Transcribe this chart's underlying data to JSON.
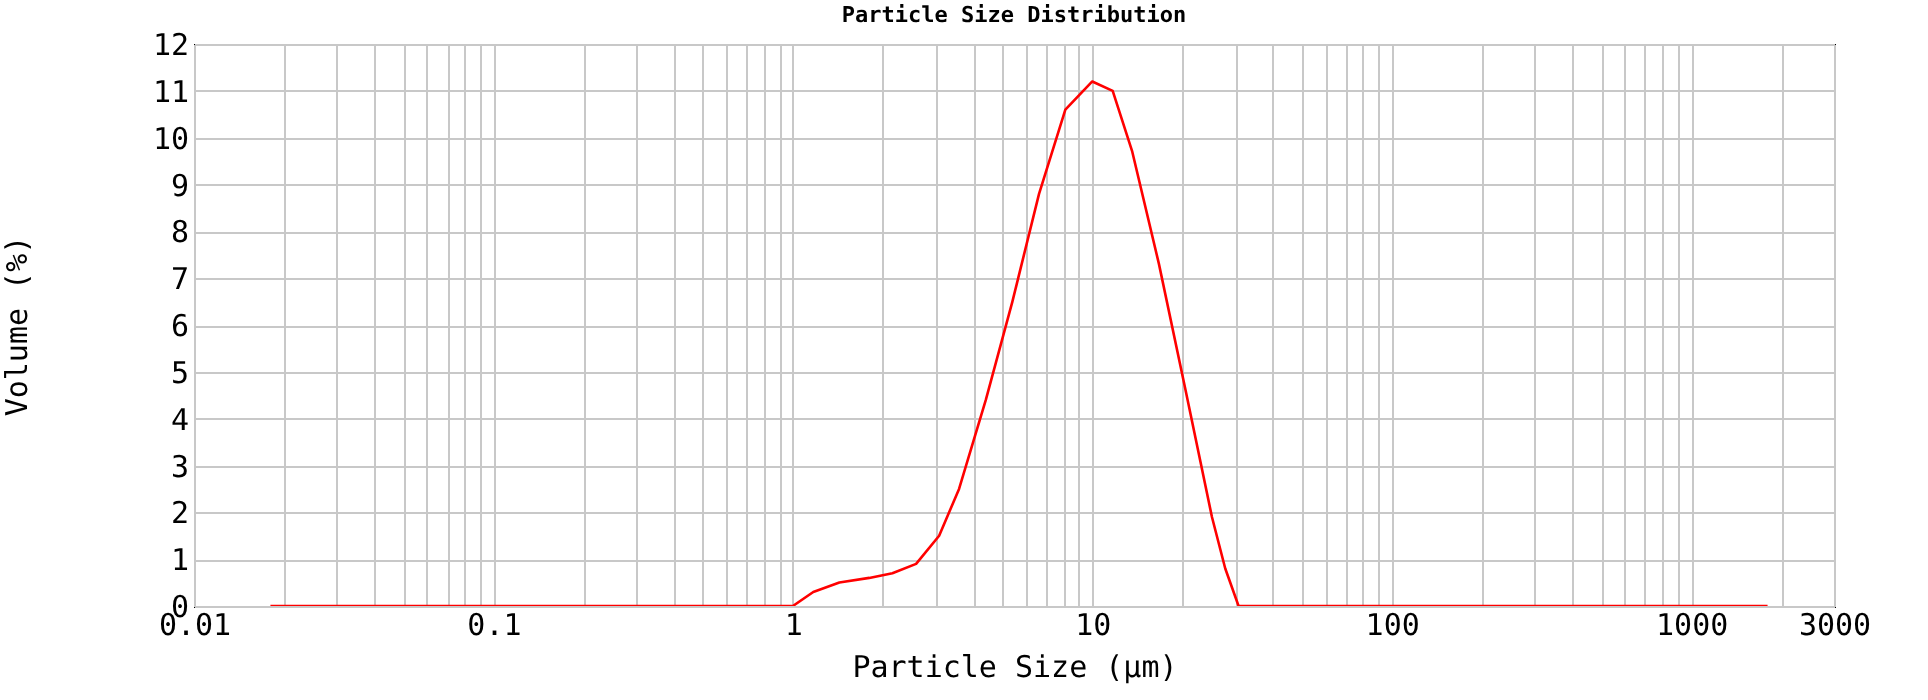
{
  "chart_data": {
    "type": "line",
    "title": "Particle Size Distribution",
    "xlabel": "Particle Size (µm)",
    "ylabel": "Volume (%)",
    "log": "x",
    "grid": true,
    "marker": "none",
    "line_style": "solid",
    "xlim": [
      0.01,
      3000
    ],
    "ylim": [
      0,
      12
    ],
    "xticks": [
      0.01,
      {
        "value": 0.02,
        "label": null
      },
      {
        "value": 0.03,
        "label": null
      },
      {
        "value": 0.04,
        "label": null
      },
      {
        "value": 0.05,
        "label": null
      },
      {
        "value": 0.06,
        "label": null
      },
      {
        "value": 0.07,
        "label": null
      },
      {
        "value": 0.08,
        "label": null
      },
      {
        "value": 0.09,
        "label": null
      },
      0.1,
      {
        "value": 0.2,
        "label": null
      },
      {
        "value": 0.3,
        "label": null
      },
      {
        "value": 0.4,
        "label": null
      },
      {
        "value": 0.5,
        "label": null
      },
      {
        "value": 0.6,
        "label": null
      },
      {
        "value": 0.7,
        "label": null
      },
      {
        "value": 0.8,
        "label": null
      },
      {
        "value": 0.9,
        "label": null
      },
      1,
      {
        "value": 2,
        "label": null
      },
      {
        "value": 3,
        "label": null
      },
      {
        "value": 4,
        "label": null
      },
      {
        "value": 5,
        "label": null
      },
      {
        "value": 6,
        "label": null
      },
      {
        "value": 7,
        "label": null
      },
      {
        "value": 8,
        "label": null
      },
      {
        "value": 9,
        "label": null
      },
      10,
      {
        "value": 20,
        "label": null
      },
      {
        "value": 30,
        "label": null
      },
      {
        "value": 40,
        "label": null
      },
      {
        "value": 50,
        "label": null
      },
      {
        "value": 60,
        "label": null
      },
      {
        "value": 70,
        "label": null
      },
      {
        "value": 80,
        "label": null
      },
      {
        "value": 90,
        "label": null
      },
      100,
      {
        "value": 200,
        "label": null
      },
      {
        "value": 300,
        "label": null
      },
      {
        "value": 400,
        "label": null
      },
      {
        "value": 500,
        "label": null
      },
      {
        "value": 600,
        "label": null
      },
      {
        "value": 700,
        "label": null
      },
      {
        "value": 800,
        "label": null
      },
      {
        "value": 900,
        "label": null
      },
      1000,
      {
        "value": 2000,
        "label": null
      },
      3000
    ],
    "yticks": [
      0,
      1,
      2,
      3,
      4,
      5,
      6,
      7,
      8,
      9,
      10,
      11,
      12
    ],
    "x": [
      0.018,
      1,
      1.17,
      1.43,
      1.8,
      2.15,
      2.58,
      3.08,
      3.59,
      4.41,
      5.41,
      6.64,
      8.13,
      10,
      11.7,
      13.6,
      16.7,
      20.5,
      25.1,
      27.8,
      30.8,
      1800
    ],
    "series": [
      {
        "color": "#ff0000",
        "values": [
          0,
          0,
          0.3,
          0.5,
          0.6,
          0.7,
          0.9,
          1.5,
          2.5,
          4.4,
          6.5,
          8.8,
          10.6,
          11.2,
          11,
          9.7,
          7.3,
          4.6,
          1.9,
          0.8,
          0,
          0
        ]
      }
    ]
  }
}
